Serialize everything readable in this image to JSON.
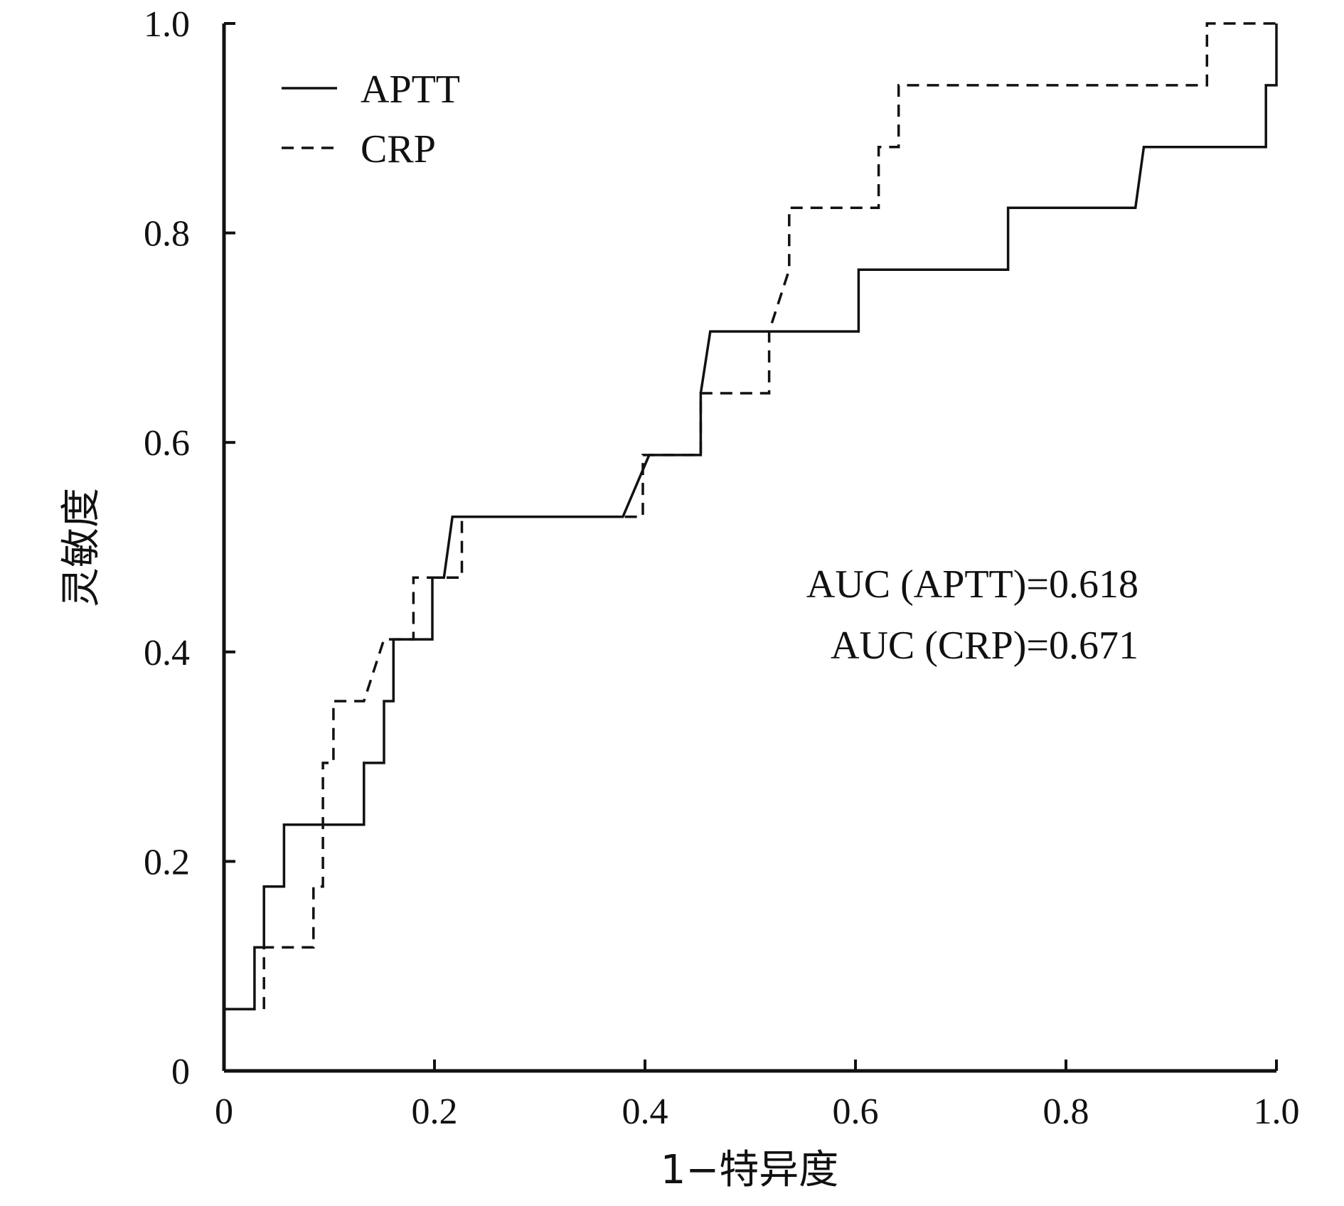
{
  "chart_data": {
    "type": "line",
    "title": "",
    "xlabel": "1−特异度",
    "ylabel": "灵敏度",
    "xlim": [
      0,
      1.0
    ],
    "ylim": [
      0,
      1.0
    ],
    "x_ticks": [
      {
        "value": 0,
        "label": "0"
      },
      {
        "value": 0.2,
        "label": "0.2"
      },
      {
        "value": 0.4,
        "label": "0.4"
      },
      {
        "value": 0.6,
        "label": "0.6"
      },
      {
        "value": 0.8,
        "label": "0.8"
      },
      {
        "value": 1.0,
        "label": "1.0"
      }
    ],
    "y_ticks": [
      {
        "value": 0,
        "label": "0"
      },
      {
        "value": 0.2,
        "label": "0.2"
      },
      {
        "value": 0.4,
        "label": "0.4"
      },
      {
        "value": 0.6,
        "label": "0.6"
      },
      {
        "value": 0.8,
        "label": "0.8"
      },
      {
        "value": 1.0,
        "label": "1.0"
      }
    ],
    "grid": false,
    "legend_position": "top-left",
    "series": [
      {
        "name": "APTT",
        "style": "solid",
        "color": "#111111",
        "points": [
          [
            0,
            0.059
          ],
          [
            0.029,
            0.059
          ],
          [
            0.029,
            0.118
          ],
          [
            0.038,
            0.118
          ],
          [
            0.038,
            0.176
          ],
          [
            0.057,
            0.176
          ],
          [
            0.057,
            0.235
          ],
          [
            0.133,
            0.235
          ],
          [
            0.133,
            0.294
          ],
          [
            0.152,
            0.294
          ],
          [
            0.152,
            0.353
          ],
          [
            0.161,
            0.353
          ],
          [
            0.161,
            0.412
          ],
          [
            0.198,
            0.412
          ],
          [
            0.198,
            0.471
          ],
          [
            0.209,
            0.471
          ],
          [
            0.217,
            0.529
          ],
          [
            0.379,
            0.529
          ],
          [
            0.404,
            0.588
          ],
          [
            0.453,
            0.588
          ],
          [
            0.453,
            0.647
          ],
          [
            0.462,
            0.706
          ],
          [
            0.603,
            0.706
          ],
          [
            0.603,
            0.765
          ],
          [
            0.745,
            0.765
          ],
          [
            0.745,
            0.824
          ],
          [
            0.866,
            0.824
          ],
          [
            0.874,
            0.882
          ],
          [
            0.99,
            0.882
          ],
          [
            0.99,
            0.941
          ],
          [
            1.0,
            0.941
          ],
          [
            1.0,
            1.0
          ]
        ]
      },
      {
        "name": "CRP",
        "style": "dashed",
        "color": "#111111",
        "points": [
          [
            0.038,
            0.059
          ],
          [
            0.038,
            0.118
          ],
          [
            0.085,
            0.118
          ],
          [
            0.085,
            0.176
          ],
          [
            0.094,
            0.176
          ],
          [
            0.094,
            0.294
          ],
          [
            0.104,
            0.294
          ],
          [
            0.104,
            0.353
          ],
          [
            0.133,
            0.353
          ],
          [
            0.152,
            0.412
          ],
          [
            0.18,
            0.412
          ],
          [
            0.18,
            0.471
          ],
          [
            0.226,
            0.471
          ],
          [
            0.226,
            0.529
          ],
          [
            0.398,
            0.529
          ],
          [
            0.398,
            0.588
          ],
          [
            0.453,
            0.588
          ],
          [
            0.453,
            0.647
          ],
          [
            0.518,
            0.647
          ],
          [
            0.518,
            0.706
          ],
          [
            0.537,
            0.765
          ],
          [
            0.537,
            0.824
          ],
          [
            0.622,
            0.824
          ],
          [
            0.622,
            0.882
          ],
          [
            0.641,
            0.882
          ],
          [
            0.641,
            0.941
          ],
          [
            0.934,
            0.941
          ],
          [
            0.934,
            1.0
          ],
          [
            1.0,
            1.0
          ]
        ]
      }
    ],
    "annotations": [
      "AUC (APTT)=0.618",
      "AUC (CRP)=0.671"
    ]
  }
}
